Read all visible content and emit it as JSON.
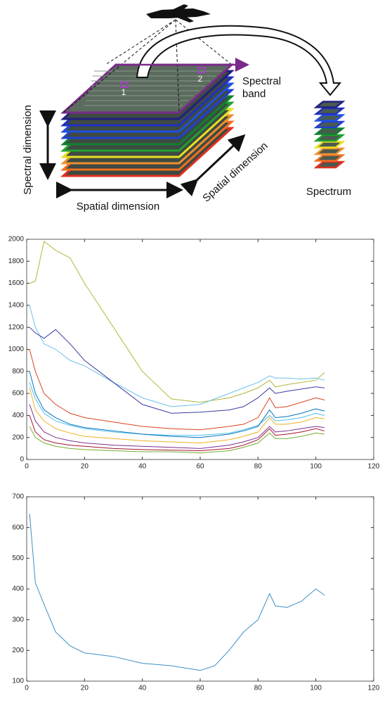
{
  "diagram": {
    "spectral_band": [
      "Spectral",
      "band"
    ],
    "spectral_dimension": "Spectral dimension",
    "spatial_dimension_bottom": "Spatial dimension",
    "spatial_dimension_side": "Spatial dimension",
    "spectrum": "Spectrum",
    "pixel_1": "1",
    "pixel_2": "2"
  },
  "chart_data": [
    {
      "type": "line",
      "x": [
        1,
        3,
        6,
        10,
        15,
        20,
        30,
        40,
        50,
        60,
        70,
        75,
        80,
        84,
        86,
        90,
        95,
        100,
        103
      ],
      "series": [
        {
          "color": "#b5b53a",
          "values": [
            1600,
            1620,
            1980,
            1900,
            1830,
            1600,
            1200,
            800,
            550,
            520,
            560,
            600,
            650,
            720,
            660,
            680,
            700,
            720,
            790
          ]
        },
        {
          "color": "#6cc0e8",
          "values": [
            1400,
            1200,
            1050,
            1000,
            900,
            850,
            700,
            560,
            480,
            500,
            600,
            650,
            700,
            760,
            740,
            740,
            730,
            740,
            720
          ]
        },
        {
          "color": "#3a3aa0",
          "values": [
            1200,
            1150,
            1100,
            1180,
            1050,
            900,
            700,
            500,
            420,
            430,
            450,
            480,
            560,
            650,
            600,
            620,
            640,
            660,
            650
          ]
        },
        {
          "color": "#d9431e",
          "values": [
            1000,
            800,
            600,
            500,
            420,
            380,
            340,
            300,
            280,
            270,
            300,
            320,
            380,
            560,
            470,
            480,
            520,
            560,
            540
          ]
        },
        {
          "color": "#4dbeee",
          "values": [
            700,
            550,
            420,
            350,
            310,
            280,
            250,
            230,
            220,
            220,
            240,
            270,
            310,
            400,
            350,
            360,
            380,
            420,
            400
          ]
        },
        {
          "color": "#0072bd",
          "values": [
            800,
            600,
            450,
            380,
            320,
            290,
            260,
            230,
            210,
            200,
            230,
            260,
            300,
            450,
            380,
            390,
            420,
            460,
            440
          ]
        },
        {
          "color": "#edb120",
          "values": [
            650,
            450,
            350,
            280,
            240,
            210,
            190,
            170,
            160,
            150,
            180,
            210,
            250,
            380,
            320,
            320,
            340,
            380,
            370
          ]
        },
        {
          "color": "#7e2f8e",
          "values": [
            500,
            350,
            250,
            200,
            170,
            150,
            130,
            120,
            110,
            100,
            130,
            160,
            200,
            300,
            250,
            260,
            280,
            300,
            290
          ]
        },
        {
          "color": "#a2142f",
          "values": [
            400,
            250,
            180,
            150,
            130,
            120,
            100,
            90,
            85,
            80,
            100,
            130,
            180,
            280,
            220,
            230,
            250,
            280,
            260
          ]
        },
        {
          "color": "#77ac30",
          "values": [
            300,
            200,
            150,
            120,
            100,
            90,
            80,
            70,
            70,
            60,
            80,
            110,
            150,
            240,
            190,
            190,
            210,
            240,
            230
          ]
        }
      ],
      "xlim": [
        0,
        120
      ],
      "xticks": [
        0,
        20,
        40,
        60,
        80,
        100,
        120
      ],
      "ylim": [
        0,
        2000
      ],
      "yticks": [
        0,
        200,
        400,
        600,
        800,
        1000,
        1200,
        1400,
        1600,
        1800,
        2000
      ]
    },
    {
      "type": "line",
      "x": [
        1,
        3,
        6,
        10,
        15,
        20,
        30,
        40,
        50,
        60,
        65,
        70,
        75,
        80,
        84,
        86,
        90,
        95,
        100,
        103
      ],
      "series": [
        {
          "color": "#3d8fc4",
          "values": [
            645,
            420,
            350,
            260,
            215,
            192,
            180,
            158,
            150,
            135,
            150,
            200,
            260,
            300,
            385,
            345,
            340,
            360,
            400,
            380
          ]
        }
      ],
      "xlim": [
        0,
        120
      ],
      "xticks": [
        0,
        20,
        40,
        60,
        80,
        100,
        120
      ],
      "ylim": [
        100,
        700
      ],
      "yticks": [
        100,
        200,
        300,
        400,
        500,
        600,
        700
      ]
    }
  ]
}
